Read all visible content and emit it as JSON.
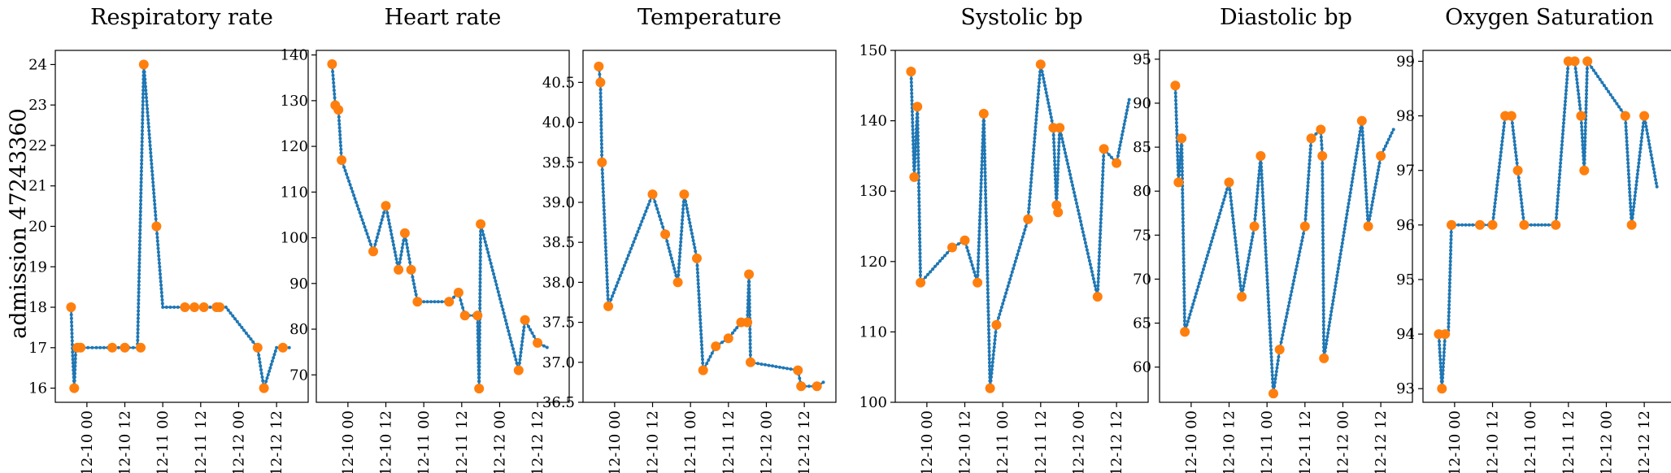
{
  "figure": {
    "row_label": "admission 47243360",
    "colors": {
      "line": "#1f77b4",
      "marker": "#ff7f0e",
      "axes": "#000000"
    }
  },
  "chart_data": [
    {
      "type": "line",
      "title": "Respiratory rate",
      "xlabel": "",
      "ylabel": "",
      "x_ticks": [
        "12-10 00",
        "12-10 12",
        "12-11 00",
        "12-11 12",
        "12-12 00",
        "12-12 12"
      ],
      "y_ticks": [
        "16",
        "17",
        "18",
        "19",
        "20",
        "21",
        "22",
        "23",
        "24"
      ],
      "ylim": [
        15.65,
        24.35
      ],
      "xlim": [
        "2125-12-09 14:00",
        "2125-12-12 22:00"
      ],
      "grid": false,
      "series": [
        {
          "role": "interpolated",
          "style": "line",
          "x": [
            "2125-12-09 19:00",
            "2125-12-09 19:30",
            "2125-12-09 20:00",
            "2125-12-09 20:30",
            "2125-12-09 21:00",
            "2125-12-09 23:00",
            "2125-12-10 03:00",
            "2125-12-10 09:00",
            "2125-12-10 12:00",
            "2125-12-10 16:00",
            "2125-12-10 18:00",
            "2125-12-10 20:00",
            "2125-12-10 22:00",
            "2125-12-11 00:00",
            "2125-12-11 12:00",
            "2125-12-11 14:00",
            "2125-12-11 16:00",
            "2125-12-11 19:00",
            "2125-12-11 20:00",
            "2125-12-12 06:00",
            "2125-12-12 08:00",
            "2125-12-12 12:00",
            "2125-12-12 14:00",
            "2125-12-12 16:00"
          ],
          "y": [
            18,
            16.8,
            16,
            17,
            17,
            17,
            17,
            17,
            17,
            17,
            24,
            22,
            20,
            18,
            18,
            18,
            18,
            18,
            18,
            17,
            16,
            17,
            17,
            17
          ]
        },
        {
          "role": "measured",
          "style": "markers",
          "x": [
            "2125-12-09 19:00",
            "2125-12-09 20:00",
            "2125-12-09 21:00",
            "2125-12-09 22:00",
            "2125-12-10 08:00",
            "2125-12-10 12:00",
            "2125-12-10 17:00",
            "2125-12-10 18:00",
            "2125-12-10 22:00",
            "2125-12-11 07:00",
            "2125-12-11 10:00",
            "2125-12-11 13:00",
            "2125-12-11 17:00",
            "2125-12-11 18:00",
            "2125-12-12 06:00",
            "2125-12-12 08:00",
            "2125-12-12 14:00"
          ],
          "y": [
            18,
            16,
            17,
            17,
            17,
            17,
            17,
            24,
            20,
            18,
            18,
            18,
            18,
            18,
            17,
            16,
            17
          ]
        }
      ]
    },
    {
      "type": "line",
      "title": "Heart rate",
      "xlabel": "",
      "ylabel": "",
      "x_ticks": [
        "12-10 00",
        "12-10 12",
        "12-11 00",
        "12-11 12",
        "12-12 00",
        "12-12 12"
      ],
      "y_ticks": [
        "70",
        "80",
        "90",
        "100",
        "110",
        "120",
        "130",
        "140"
      ],
      "ylim": [
        64,
        141
      ],
      "xlim": [
        "2125-12-09 14:00",
        "2125-12-12 22:00"
      ],
      "grid": false,
      "series": [
        {
          "role": "interpolated",
          "style": "line",
          "x": [
            "2125-12-09 19:00",
            "2125-12-09 20:00",
            "2125-12-09 21:00",
            "2125-12-09 22:00",
            "2125-12-10 08:00",
            "2125-12-10 12:00",
            "2125-12-10 16:00",
            "2125-12-10 18:00",
            "2125-12-10 20:00",
            "2125-12-10 22:00",
            "2125-12-11 00:00",
            "2125-12-11 08:00",
            "2125-12-11 11:00",
            "2125-12-11 13:00",
            "2125-12-11 17:00",
            "2125-12-11 17:30",
            "2125-12-11 18:00",
            "2125-12-12 06:00",
            "2125-12-12 08:00",
            "2125-12-12 12:00",
            "2125-12-12 15:00"
          ],
          "y": [
            138,
            129,
            128,
            117,
            97,
            107,
            93,
            101,
            93,
            86,
            86,
            86,
            88,
            83,
            83,
            67,
            103,
            71,
            82,
            77,
            76
          ]
        },
        {
          "role": "measured",
          "style": "markers",
          "x": [
            "2125-12-09 19:00",
            "2125-12-09 20:00",
            "2125-12-09 21:00",
            "2125-12-09 22:00",
            "2125-12-10 08:00",
            "2125-12-10 12:00",
            "2125-12-10 16:00",
            "2125-12-10 18:00",
            "2125-12-10 20:00",
            "2125-12-10 22:00",
            "2125-12-11 08:00",
            "2125-12-11 11:00",
            "2125-12-11 13:00",
            "2125-12-11 17:00",
            "2125-12-11 17:30",
            "2125-12-11 18:00",
            "2125-12-12 06:00",
            "2125-12-12 08:00",
            "2125-12-12 12:00"
          ],
          "y": [
            138,
            129,
            128,
            117,
            97,
            107,
            93,
            101,
            93,
            86,
            86,
            88,
            83,
            83,
            67,
            103,
            71,
            82,
            77
          ]
        }
      ]
    },
    {
      "type": "line",
      "title": "Temperature",
      "xlabel": "",
      "ylabel": "",
      "x_ticks": [
        "12-10 00",
        "12-10 12",
        "12-11 00",
        "12-11 12",
        "12-12 00",
        "12-12 12"
      ],
      "y_ticks": [
        "36.5",
        "37.0",
        "37.5",
        "38.0",
        "38.5",
        "39.0",
        "39.5",
        "40.0",
        "40.5"
      ],
      "ylim": [
        36.5,
        40.9
      ],
      "xlim": [
        "2125-12-09 14:00",
        "2125-12-12 22:00"
      ],
      "grid": false,
      "series": [
        {
          "role": "interpolated",
          "style": "line",
          "x": [
            "2125-12-09 19:00",
            "2125-12-09 19:30",
            "2125-12-09 20:00",
            "2125-12-09 22:00",
            "2125-12-10 12:00",
            "2125-12-10 16:00",
            "2125-12-10 20:00",
            "2125-12-10 22:00",
            "2125-12-11 02:00",
            "2125-12-11 04:00",
            "2125-12-11 08:00",
            "2125-12-11 12:00",
            "2125-12-11 16:00",
            "2125-12-11 18:00",
            "2125-12-11 18:30",
            "2125-12-11 19:00",
            "2125-12-12 10:00",
            "2125-12-12 11:00",
            "2125-12-12 16:00",
            "2125-12-12 18:00"
          ],
          "y": [
            40.7,
            40.5,
            39.5,
            37.7,
            39.1,
            38.6,
            38.0,
            39.1,
            38.3,
            36.9,
            37.2,
            37.3,
            37.5,
            37.5,
            38.1,
            37.0,
            36.9,
            36.7,
            36.7,
            36.75
          ]
        },
        {
          "role": "measured",
          "style": "markers",
          "x": [
            "2125-12-09 19:00",
            "2125-12-09 19:30",
            "2125-12-09 20:00",
            "2125-12-09 22:00",
            "2125-12-10 12:00",
            "2125-12-10 16:00",
            "2125-12-10 20:00",
            "2125-12-10 22:00",
            "2125-12-11 02:00",
            "2125-12-11 04:00",
            "2125-12-11 08:00",
            "2125-12-11 12:00",
            "2125-12-11 16:00",
            "2125-12-11 18:00",
            "2125-12-11 18:30",
            "2125-12-11 19:00",
            "2125-12-12 10:00",
            "2125-12-12 11:00",
            "2125-12-12 16:00"
          ],
          "y": [
            40.7,
            40.5,
            39.5,
            37.7,
            39.1,
            38.6,
            38.0,
            39.1,
            38.3,
            36.9,
            37.2,
            37.3,
            37.5,
            37.5,
            38.1,
            37.0,
            36.9,
            36.7,
            36.7
          ]
        }
      ]
    },
    {
      "type": "line",
      "title": "Systolic bp",
      "xlabel": "",
      "ylabel": "",
      "x_ticks": [
        "12-10 00",
        "12-10 12",
        "12-11 00",
        "12-11 12",
        "12-12 00",
        "12-12 12"
      ],
      "y_ticks": [
        "100",
        "110",
        "120",
        "130",
        "140",
        "150"
      ],
      "ylim": [
        100,
        150
      ],
      "xlim": [
        "2125-12-09 14:00",
        "2125-12-12 22:00"
      ],
      "grid": false,
      "series": [
        {
          "role": "interpolated",
          "style": "line",
          "x": [
            "2125-12-09 19:00",
            "2125-12-09 20:00",
            "2125-12-09 21:00",
            "2125-12-09 22:00",
            "2125-12-10 08:00",
            "2125-12-10 12:00",
            "2125-12-10 16:00",
            "2125-12-10 18:00",
            "2125-12-10 20:00",
            "2125-12-10 22:00",
            "2125-12-11 08:00",
            "2125-12-11 12:00",
            "2125-12-11 16:00",
            "2125-12-11 17:00",
            "2125-12-11 18:00",
            "2125-12-12 06:00",
            "2125-12-12 08:00",
            "2125-12-12 12:00",
            "2125-12-12 16:00"
          ],
          "y": [
            147,
            132,
            142,
            117,
            122,
            123,
            117,
            141,
            102,
            111,
            126,
            148,
            139,
            128,
            139,
            115,
            136,
            134,
            143
          ]
        },
        {
          "role": "measured",
          "style": "markers",
          "x": [
            "2125-12-09 19:00",
            "2125-12-09 20:00",
            "2125-12-09 21:00",
            "2125-12-09 22:00",
            "2125-12-10 08:00",
            "2125-12-10 12:00",
            "2125-12-10 16:00",
            "2125-12-10 18:00",
            "2125-12-10 20:00",
            "2125-12-10 22:00",
            "2125-12-11 08:00",
            "2125-12-11 12:00",
            "2125-12-11 16:00",
            "2125-12-11 17:00",
            "2125-12-11 17:30",
            "2125-12-11 18:00",
            "2125-12-12 06:00",
            "2125-12-12 08:00",
            "2125-12-12 12:00"
          ],
          "y": [
            147,
            132,
            142,
            117,
            122,
            123,
            117,
            141,
            102,
            111,
            126,
            148,
            139,
            128,
            127,
            139,
            115,
            136,
            134
          ]
        }
      ]
    },
    {
      "type": "line",
      "title": "Diastolic bp",
      "xlabel": "",
      "ylabel": "",
      "x_ticks": [
        "12-10 00",
        "12-10 12",
        "12-11 00",
        "12-11 12",
        "12-12 00",
        "12-12 12"
      ],
      "y_ticks": [
        "60",
        "65",
        "70",
        "75",
        "80",
        "85",
        "90",
        "95"
      ],
      "ylim": [
        56,
        96
      ],
      "xlim": [
        "2125-12-09 14:00",
        "2125-12-12 22:00"
      ],
      "grid": false,
      "series": [
        {
          "role": "interpolated",
          "style": "line",
          "x": [
            "2125-12-09 19:00",
            "2125-12-09 20:00",
            "2125-12-09 21:00",
            "2125-12-09 22:00",
            "2125-12-10 12:00",
            "2125-12-10 16:00",
            "2125-12-10 20:00",
            "2125-12-10 22:00",
            "2125-12-11 02:00",
            "2125-12-11 04:00",
            "2125-12-11 12:00",
            "2125-12-11 14:00",
            "2125-12-11 17:00",
            "2125-12-11 17:30",
            "2125-12-11 18:00",
            "2125-12-12 06:00",
            "2125-12-12 08:00",
            "2125-12-12 12:00",
            "2125-12-12 16:00"
          ],
          "y": [
            92,
            81,
            86,
            64,
            81,
            68,
            76,
            84,
            57,
            62,
            76,
            86,
            87,
            84,
            61,
            88,
            76,
            84,
            87
          ]
        },
        {
          "role": "measured",
          "style": "markers",
          "x": [
            "2125-12-09 19:00",
            "2125-12-09 20:00",
            "2125-12-09 21:00",
            "2125-12-09 22:00",
            "2125-12-10 12:00",
            "2125-12-10 16:00",
            "2125-12-10 20:00",
            "2125-12-10 22:00",
            "2125-12-11 02:00",
            "2125-12-11 04:00",
            "2125-12-11 12:00",
            "2125-12-11 14:00",
            "2125-12-11 17:00",
            "2125-12-11 17:30",
            "2125-12-11 18:00",
            "2125-12-12 06:00",
            "2125-12-12 08:00",
            "2125-12-12 12:00"
          ],
          "y": [
            92,
            81,
            86,
            64,
            81,
            68,
            76,
            84,
            57,
            62,
            76,
            86,
            87,
            84,
            61,
            88,
            76,
            84
          ]
        }
      ]
    },
    {
      "type": "line",
      "title": "Oxygen Saturation",
      "xlabel": "",
      "ylabel": "",
      "x_ticks": [
        "12-10 00",
        "12-10 12",
        "12-11 00",
        "12-11 12",
        "12-12 00",
        "12-12 12"
      ],
      "y_ticks": [
        "93",
        "94",
        "95",
        "96",
        "97",
        "98",
        "99"
      ],
      "ylim": [
        92.75,
        99.2
      ],
      "xlim": [
        "2125-12-09 14:00",
        "2125-12-12 22:00"
      ],
      "grid": false,
      "series": [
        {
          "role": "interpolated",
          "style": "line",
          "x": [
            "2125-12-09 19:00",
            "2125-12-09 20:00",
            "2125-12-09 21:00",
            "2125-12-09 22:00",
            "2125-12-09 23:00",
            "2125-12-10 08:00",
            "2125-12-10 12:00",
            "2125-12-10 16:00",
            "2125-12-10 18:00",
            "2125-12-10 20:00",
            "2125-12-10 22:00",
            "2125-12-11 08:00",
            "2125-12-11 12:00",
            "2125-12-11 14:00",
            "2125-12-11 16:00",
            "2125-12-11 17:00",
            "2125-12-11 18:00",
            "2125-12-12 06:00",
            "2125-12-12 08:00",
            "2125-12-12 12:00",
            "2125-12-12 16:00"
          ],
          "y": [
            94,
            93,
            94,
            94,
            96,
            96,
            96,
            98,
            98,
            97,
            96,
            96,
            99,
            99,
            98,
            97,
            99,
            98,
            96,
            98,
            96.7
          ]
        },
        {
          "role": "measured",
          "style": "markers",
          "x": [
            "2125-12-09 19:00",
            "2125-12-09 20:00",
            "2125-12-09 21:00",
            "2125-12-09 23:00",
            "2125-12-10 08:00",
            "2125-12-10 12:00",
            "2125-12-10 16:00",
            "2125-12-10 18:00",
            "2125-12-10 20:00",
            "2125-12-10 22:00",
            "2125-12-11 08:00",
            "2125-12-11 12:00",
            "2125-12-11 14:00",
            "2125-12-11 16:00",
            "2125-12-11 17:00",
            "2125-12-11 18:00",
            "2125-12-12 06:00",
            "2125-12-12 08:00",
            "2125-12-12 12:00"
          ],
          "y": [
            94,
            93,
            94,
            96,
            96,
            96,
            98,
            98,
            97,
            96,
            96,
            99,
            99,
            98,
            97,
            99,
            98,
            96,
            98
          ]
        }
      ]
    }
  ]
}
